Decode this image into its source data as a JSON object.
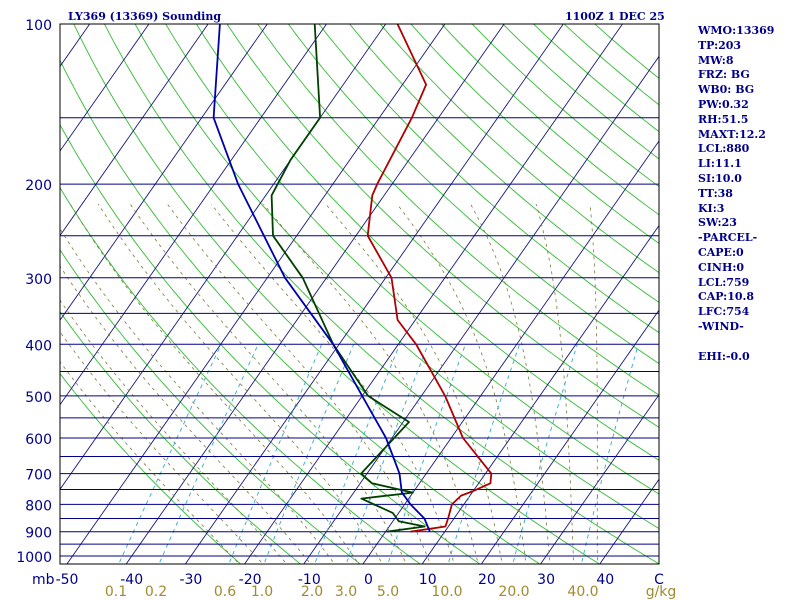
{
  "chart_data": {
    "type": "line",
    "title": "LY369 (13369) Sounding",
    "time_label": "1100Z  1 DEC 25",
    "pressure_unit": "mb",
    "mixing_ratio_unit": "g/kg",
    "pressure_range": [
      100,
      1050
    ],
    "temperature_range": [
      -50,
      50
    ],
    "pressure_levels": [
      100,
      150,
      200,
      250,
      300,
      350,
      400,
      450,
      500,
      550,
      600,
      650,
      700,
      750,
      800,
      850,
      900,
      950,
      1000,
      1050
    ],
    "pressure_tick_labels": [
      "100",
      "200",
      "300",
      "400",
      "500",
      "600",
      "700",
      "800",
      "900",
      "1000"
    ],
    "temperature_tick_labels": [
      "-50",
      "-40",
      "-30",
      "-20",
      "-10",
      "0",
      "10",
      "20",
      "30",
      "40",
      "C"
    ],
    "mixing_ratio_tick_labels": [
      "0.1",
      "0.2",
      "0.6",
      "1.0",
      "2.0",
      "3.0",
      "5.0",
      "10.0",
      "20.0",
      "40.0"
    ],
    "mixing_ratio_values": [
      0.1,
      0.2,
      0.6,
      1.0,
      2.0,
      3.0,
      5.0,
      10.0,
      20.0,
      40.0
    ],
    "isotherms_every_c": 10,
    "series": [
      {
        "name": "Temperature",
        "color": "#b00000",
        "points": [
          {
            "p": 900,
            "t": 4.2
          },
          {
            "p": 880,
            "t": 9.5
          },
          {
            "p": 850,
            "t": 9.0
          },
          {
            "p": 800,
            "t": 8.0
          },
          {
            "p": 770,
            "t": 8.5
          },
          {
            "p": 755,
            "t": 10.0
          },
          {
            "p": 730,
            "t": 12.0
          },
          {
            "p": 700,
            "t": 11.0
          },
          {
            "p": 600,
            "t": 2.0
          },
          {
            "p": 500,
            "t": -6.0
          },
          {
            "p": 400,
            "t": -17.0
          },
          {
            "p": 360,
            "t": -23.0
          },
          {
            "p": 300,
            "t": -29.0
          },
          {
            "p": 250,
            "t": -38.0
          },
          {
            "p": 210,
            "t": -42.0
          },
          {
            "p": 200,
            "t": -42.5
          },
          {
            "p": 150,
            "t": -44.5
          },
          {
            "p": 130,
            "t": -46.0
          },
          {
            "p": 100,
            "t": -58.0
          }
        ]
      },
      {
        "name": "Dew point",
        "color": "#004000",
        "points": [
          {
            "p": 900,
            "t": 0.2
          },
          {
            "p": 880,
            "t": 6.0
          },
          {
            "p": 860,
            "t": 1.0
          },
          {
            "p": 830,
            "t": -1.0
          },
          {
            "p": 780,
            "t": -8.0
          },
          {
            "p": 760,
            "t": 0.0
          },
          {
            "p": 730,
            "t": -8.0
          },
          {
            "p": 700,
            "t": -11.0
          },
          {
            "p": 560,
            "t": -9.0
          },
          {
            "p": 500,
            "t": -19.0
          },
          {
            "p": 400,
            "t": -31.0
          },
          {
            "p": 300,
            "t": -44.0
          },
          {
            "p": 250,
            "t": -54.0
          },
          {
            "p": 210,
            "t": -59.0
          },
          {
            "p": 180,
            "t": -60.0
          },
          {
            "p": 150,
            "t": -60.0
          },
          {
            "p": 100,
            "t": -72.0
          }
        ]
      },
      {
        "name": "Parcel path",
        "color": "#0000aa",
        "points": [
          {
            "p": 900,
            "t": 7.5
          },
          {
            "p": 850,
            "t": 5.0
          },
          {
            "p": 800,
            "t": 1.0
          },
          {
            "p": 759,
            "t": -1.9
          },
          {
            "p": 700,
            "t": -4.5
          },
          {
            "p": 600,
            "t": -11.0
          },
          {
            "p": 500,
            "t": -20.0
          },
          {
            "p": 400,
            "t": -31.0
          },
          {
            "p": 300,
            "t": -47.0
          },
          {
            "p": 200,
            "t": -66.0
          },
          {
            "p": 150,
            "t": -78.0
          },
          {
            "p": 100,
            "t": -88.0
          }
        ]
      }
    ]
  },
  "indices": {
    "wmo": "WMO:13369",
    "tp": "TP:203",
    "mw": "MW:8",
    "frz": "FRZ: BG",
    "wb0": "WB0: BG",
    "pw": "PW:0.32",
    "rh": "RH:51.5",
    "maxt": "MAXT:12.2",
    "lcl": "LCL:880",
    "li": "LI:11.1",
    "si": "SI:10.0",
    "tt": "TT:38",
    "ki": "KI:3",
    "sw": "SW:23",
    "parcel_header": "-PARCEL-",
    "cape": "CAPE:0",
    "cinh": "CINH:0",
    "parcel_lcl": "LCL:759",
    "cap": "CAP:10.8",
    "lfc": "LFC:754",
    "wind_header": "-WIND-",
    "ehi": "EHI:-0.0"
  }
}
